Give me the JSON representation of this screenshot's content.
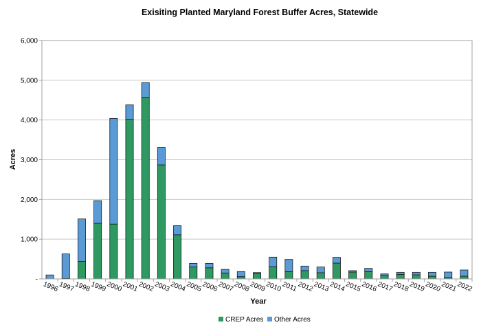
{
  "chart_data": {
    "type": "bar",
    "stacked": true,
    "title": "Exisiting Planted Maryland Forest Buffer Acres, Statewide",
    "xlabel": "Year",
    "ylabel": "Acres",
    "ylim": [
      0,
      6000
    ],
    "yticks": [
      0,
      1000,
      2000,
      3000,
      4000,
      5000,
      6000
    ],
    "ytick_labels": [
      "-",
      "1,000",
      "2,000",
      "3,000",
      "4,000",
      "5,000",
      "6,000"
    ],
    "grid": "horizontal",
    "legend_position": "bottom",
    "categories": [
      "1996",
      "1997",
      "1998",
      "1999",
      "2000",
      "2001",
      "2002",
      "2003",
      "2004",
      "2005",
      "2006",
      "2007",
      "2008",
      "2009",
      "2010",
      "2011",
      "2012",
      "2013",
      "2014",
      "2015",
      "2016",
      "2017",
      "2018",
      "2019",
      "2020",
      "2021",
      "2022"
    ],
    "series": [
      {
        "name": "CREP Acres",
        "color": "#2e9a62",
        "values": [
          0,
          10,
          440,
          1400,
          1380,
          4020,
          4570,
          2870,
          1110,
          300,
          280,
          150,
          57,
          140,
          306,
          185,
          208,
          156,
          398,
          173,
          185,
          86,
          115,
          104,
          69,
          35,
          69
        ]
      },
      {
        "name": "Other Acres",
        "color": "#5b9bd5",
        "values": [
          100,
          620,
          1070,
          570,
          2660,
          360,
          370,
          440,
          230,
          90,
          110,
          90,
          128,
          20,
          242,
          305,
          115,
          144,
          144,
          35,
          80,
          40,
          52,
          63,
          98,
          138,
          156
        ]
      }
    ]
  }
}
